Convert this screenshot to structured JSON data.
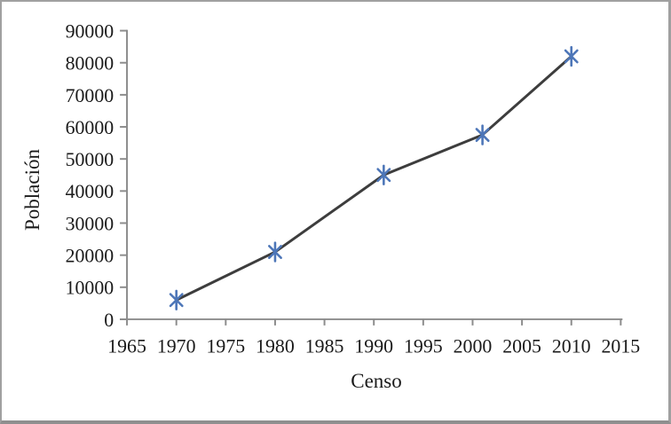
{
  "chart_data": {
    "type": "line",
    "title": "",
    "xlabel": "Censo",
    "ylabel": "Población",
    "categories_note": "population by census year",
    "series": [
      {
        "name": "Población",
        "x": [
          1970,
          1980,
          1991,
          2001,
          2010
        ],
        "y": [
          6000,
          21000,
          45000,
          57500,
          82000
        ]
      }
    ],
    "xlim": [
      1965,
      2015
    ],
    "ylim": [
      0,
      90000
    ],
    "x_ticks": [
      1965,
      1970,
      1975,
      1980,
      1985,
      1990,
      1995,
      2000,
      2005,
      2010,
      2015
    ],
    "y_ticks": [
      0,
      10000,
      20000,
      30000,
      40000,
      50000,
      60000,
      70000,
      80000,
      90000
    ],
    "grid": false,
    "legend": "none",
    "marker": "asterisk-star-6-point",
    "colors": {
      "marker": "#4d76b8",
      "line": "#3d3d3d",
      "axis": "#8c8c8c",
      "text": "#1a1a1a",
      "background": "#ffffff",
      "border": "#9e9e9e"
    }
  }
}
